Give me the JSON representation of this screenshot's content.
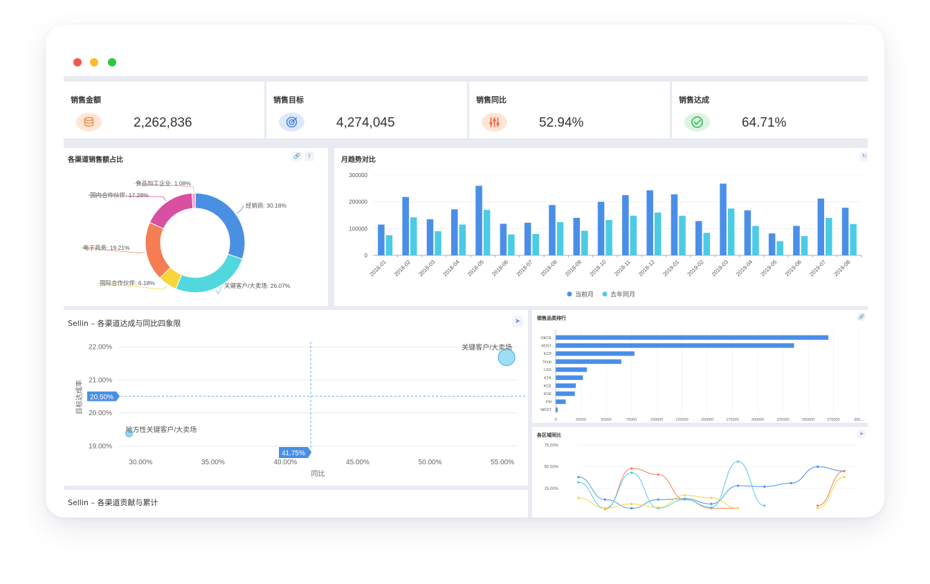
{
  "window": {
    "traffic_lights": {
      "close": "#f05b4f",
      "minimize": "#f7bd2e",
      "maximize": "#2dc840"
    }
  },
  "kpis": [
    {
      "title": "销售金额",
      "value": "2,262,836",
      "icon": "coins-icon",
      "icon_bg": "#fde6d6",
      "icon_color": "#f29148"
    },
    {
      "title": "销售目标",
      "value": "4,274,045",
      "icon": "target-icon",
      "icon_bg": "#dde9fb",
      "icon_color": "#4f86e0"
    },
    {
      "title": "销售同比",
      "value": "52.94%",
      "icon": "sliders-icon",
      "icon_bg": "#fde6d6",
      "icon_color": "#f26d4f"
    },
    {
      "title": "销售达成",
      "value": "64.71%",
      "icon": "checkmark-icon",
      "icon_bg": "#dcf5e0",
      "icon_color": "#3cba5c"
    }
  ],
  "donut": {
    "title": "各渠道销售额占比",
    "chart_data": {
      "type": "pie",
      "slices": [
        {
          "name": "经销商",
          "value": 30.18,
          "label": "经销商: 30.18%",
          "color": "#4a90e2"
        },
        {
          "name": "关键客户/大卖场",
          "value": 26.07,
          "label": "关键客户/大卖场: 26.07%",
          "color": "#50d8de"
        },
        {
          "name": "国际合作伙伴",
          "value": 6.18,
          "label": "国际合作伙伴: 6.18%",
          "color": "#f7d53d"
        },
        {
          "name": "电子商务",
          "value": 19.21,
          "label": "电子商务: 19.21%",
          "color": "#f47d54"
        },
        {
          "name": "国内合作伙伴",
          "value": 17.28,
          "label": "国内合作伙伴: 17.28%",
          "color": "#d94fa2"
        },
        {
          "name": "食品加工企业",
          "value": 1.08,
          "label": "食品加工企业: 1.08%",
          "color": "#f3a3cf"
        }
      ]
    }
  },
  "monthly": {
    "title": "月趋势对比",
    "chart_data": {
      "type": "bar",
      "categories": [
        "2018-01",
        "2018-02",
        "2018-03",
        "2018-04",
        "2018-05",
        "2018-06",
        "2018-07",
        "2018-08",
        "2018-09",
        "2018-10",
        "2018-11",
        "2018-12",
        "2019-01",
        "2019-02",
        "2019-03",
        "2019-04",
        "2019-05",
        "2019-06",
        "2019-07",
        "2019-08"
      ],
      "series": [
        {
          "name": "当前月",
          "color": "#4a8fe7",
          "values": [
            115000,
            218000,
            135000,
            172000,
            260000,
            118000,
            122000,
            188000,
            140000,
            200000,
            225000,
            243000,
            228000,
            128000,
            268000,
            168000,
            82000,
            110000,
            212000,
            178000
          ]
        },
        {
          "name": "去年同月",
          "color": "#4ccbe4",
          "values": [
            75000,
            142000,
            90000,
            115000,
            170000,
            78000,
            80000,
            124000,
            92000,
            132000,
            148000,
            160000,
            148000,
            84000,
            175000,
            110000,
            53000,
            72000,
            140000,
            117000
          ]
        }
      ],
      "yticks": [
        "0",
        "100000",
        "200000",
        "300000"
      ],
      "ylim": [
        0,
        300000
      ]
    }
  },
  "quadrant": {
    "title": "Sellin – 各渠道达成与同比四象限",
    "chart_data": {
      "type": "scatter",
      "xlabel": "同比",
      "ylabel": "目标达成率",
      "xlim": [
        28.5,
        56
      ],
      "ylim": [
        18.8,
        22.15
      ],
      "xticks": [
        "30.00%",
        "35.00%",
        "40.00%",
        "45.00%",
        "50.00%",
        "55.00%"
      ],
      "yticks": [
        "22.00%",
        "21.00%",
        "20.00%",
        "19.00%"
      ],
      "points": [
        {
          "label": "关键客户/大卖场",
          "x": 55.0,
          "y": 21.68
        },
        {
          "label": "地方性关键客户/大卖场",
          "x": 29.0,
          "y": 19.38
        }
      ],
      "ref_x": "41.75%",
      "ref_y": "20.50%"
    }
  },
  "next_panel_title": "Sellin – 各渠道贡献与累计",
  "ranking": {
    "title": "销售品类排行",
    "chart_data": {
      "type": "bar",
      "orientation": "horizontal",
      "categories": [
        "OKCE",
        "KDST",
        "KCP",
        "Soup",
        "LSG",
        "KTK",
        "KCE",
        "KVE",
        "FM",
        "WFDT"
      ],
      "values": [
        270000,
        236000,
        78000,
        65000,
        31000,
        27000,
        20000,
        19000,
        10000,
        2000
      ],
      "xticks": [
        "0",
        "25000",
        "50000",
        "75000",
        "100000",
        "125000",
        "150000",
        "175000",
        "200000",
        "225000",
        "250000",
        "275000",
        "300..."
      ],
      "color": "#4a8fe7"
    }
  },
  "region": {
    "title": "各区域同比",
    "chart_data": {
      "type": "line",
      "yticks": [
        "75.00%",
        "50.00%",
        "25.00%"
      ],
      "ylim": [
        0,
        80
      ],
      "series": [
        {
          "color": "#4a8fe7",
          "values": [
            38,
            12,
            2,
            12,
            13,
            7,
            28,
            27,
            31,
            50,
            45
          ]
        },
        {
          "color": "#f47d54",
          "values": [
            null,
            1,
            48,
            41,
            12,
            2,
            2,
            null,
            null,
            5,
            45
          ]
        },
        {
          "color": "#4ccbe4",
          "values": [
            32,
            2,
            43,
            2,
            12,
            3,
            56,
            5,
            null,
            null,
            null
          ]
        },
        {
          "color": "#f7d53d",
          "values": [
            14,
            2,
            7,
            3,
            17,
            14,
            2,
            null,
            null,
            2,
            38
          ]
        }
      ]
    }
  }
}
